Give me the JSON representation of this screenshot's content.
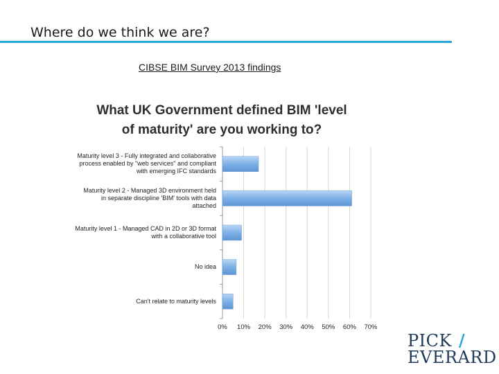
{
  "slide": {
    "title": "Where do we think we are?",
    "subtitle": "CIBSE BIM Survey 2013 findings"
  },
  "logo": {
    "line1": "PICK",
    "slash": "/",
    "line2": "EVERARD"
  },
  "chart_data": {
    "type": "bar",
    "orientation": "horizontal",
    "title_lines": [
      "What UK Government defined BIM 'level",
      "of maturity' are you working to?"
    ],
    "categories": [
      [
        "Maturity level 3 - Fully integrated and collaborative",
        "process enabled by \"web services\" and compliant",
        "with emerging IFC standards"
      ],
      [
        "Maturity level 2 - Managed 3D environment held",
        "in separate discipline 'BIM' tools with data",
        "attached"
      ],
      [
        "Maturity level 1 - Managed CAD in 2D or 3D format",
        "with a collaborative tool"
      ],
      [
        "No idea"
      ],
      [
        "Can't relate to maturity levels"
      ]
    ],
    "values": [
      17,
      61,
      9,
      6.5,
      5
    ],
    "xlim": [
      0,
      70
    ],
    "xticks": [
      "0%",
      "10%",
      "20%",
      "30%",
      "40%",
      "50%",
      "60%",
      "70%"
    ],
    "grid": true,
    "bar_color": "#7eb0e6"
  }
}
